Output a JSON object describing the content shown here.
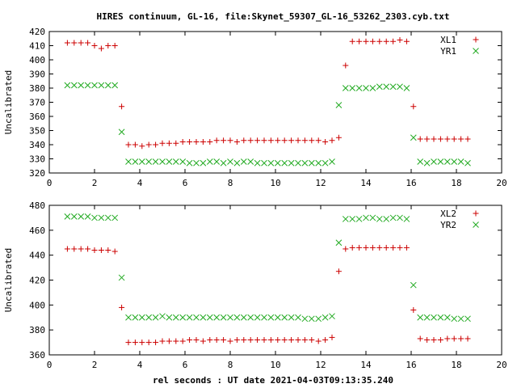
{
  "title": "HIRES continuum, GL-16, file:Skynet_59307_GL-16_53262_2303.cyb.txt",
  "xlabel": "rel seconds : UT date 2021-04-03T09:13:35.240",
  "colors": {
    "plus": "#cc0000",
    "cross": "#22aa22",
    "axis": "#000000"
  },
  "chart_data": [
    {
      "type": "scatter",
      "ylabel": "Uncalibrated",
      "xlim": [
        0,
        20
      ],
      "ylim": [
        320,
        420
      ],
      "xticks": [
        0,
        2,
        4,
        6,
        8,
        10,
        12,
        14,
        16,
        18,
        20
      ],
      "yticks": [
        320,
        330,
        340,
        350,
        360,
        370,
        380,
        390,
        400,
        410,
        420
      ],
      "legend_position": "top-right",
      "series": [
        {
          "name": "XL1",
          "marker": "plus",
          "x": [
            0.8,
            1.1,
            1.4,
            1.7,
            2.0,
            2.3,
            2.6,
            2.9,
            3.2,
            3.5,
            3.8,
            4.1,
            4.4,
            4.7,
            5.0,
            5.3,
            5.6,
            5.9,
            6.2,
            6.5,
            6.8,
            7.1,
            7.4,
            7.7,
            8.0,
            8.3,
            8.6,
            8.9,
            9.2,
            9.5,
            9.8,
            10.1,
            10.4,
            10.7,
            11.0,
            11.3,
            11.6,
            11.9,
            12.2,
            12.5,
            12.8,
            13.1,
            13.4,
            13.7,
            14.0,
            14.3,
            14.6,
            14.9,
            15.2,
            15.5,
            15.8,
            16.1,
            16.4,
            16.7,
            17.0,
            17.3,
            17.6,
            17.9,
            18.2,
            18.5
          ],
          "y": [
            412,
            412,
            412,
            412,
            410,
            408,
            410,
            410,
            367,
            340,
            340,
            339,
            340,
            340,
            341,
            341,
            341,
            342,
            342,
            342,
            342,
            342,
            343,
            343,
            343,
            342,
            343,
            343,
            343,
            343,
            343,
            343,
            343,
            343,
            343,
            343,
            343,
            343,
            342,
            343,
            345,
            396,
            413,
            413,
            413,
            413,
            413,
            413,
            413,
            414,
            413,
            367,
            344,
            344,
            344,
            344,
            344,
            344,
            344,
            344
          ]
        },
        {
          "name": "YR1",
          "marker": "cross",
          "x": [
            0.8,
            1.1,
            1.4,
            1.7,
            2.0,
            2.3,
            2.6,
            2.9,
            3.2,
            3.5,
            3.8,
            4.1,
            4.4,
            4.7,
            5.0,
            5.3,
            5.6,
            5.9,
            6.2,
            6.5,
            6.8,
            7.1,
            7.4,
            7.7,
            8.0,
            8.3,
            8.6,
            8.9,
            9.2,
            9.5,
            9.8,
            10.1,
            10.4,
            10.7,
            11.0,
            11.3,
            11.6,
            11.9,
            12.2,
            12.5,
            12.8,
            13.1,
            13.4,
            13.7,
            14.0,
            14.3,
            14.6,
            14.9,
            15.2,
            15.5,
            15.8,
            16.1,
            16.4,
            16.7,
            17.0,
            17.3,
            17.6,
            17.9,
            18.2,
            18.5
          ],
          "y": [
            382,
            382,
            382,
            382,
            382,
            382,
            382,
            382,
            349,
            328,
            328,
            328,
            328,
            328,
            328,
            328,
            328,
            328,
            327,
            327,
            327,
            328,
            328,
            327,
            328,
            327,
            328,
            328,
            327,
            327,
            327,
            327,
            327,
            327,
            327,
            327,
            327,
            327,
            327,
            328,
            368,
            380,
            380,
            380,
            380,
            380,
            381,
            381,
            381,
            381,
            380,
            345,
            328,
            327,
            328,
            328,
            328,
            328,
            328,
            327
          ]
        }
      ]
    },
    {
      "type": "scatter",
      "ylabel": "Uncalibrated",
      "xlim": [
        0,
        20
      ],
      "ylim": [
        360,
        480
      ],
      "xticks": [
        0,
        2,
        4,
        6,
        8,
        10,
        12,
        14,
        16,
        18,
        20
      ],
      "yticks": [
        360,
        380,
        400,
        420,
        440,
        460,
        480
      ],
      "legend_position": "top-right",
      "series": [
        {
          "name": "XL2",
          "marker": "plus",
          "x": [
            0.8,
            1.1,
            1.4,
            1.7,
            2.0,
            2.3,
            2.6,
            2.9,
            3.2,
            3.5,
            3.8,
            4.1,
            4.4,
            4.7,
            5.0,
            5.3,
            5.6,
            5.9,
            6.2,
            6.5,
            6.8,
            7.1,
            7.4,
            7.7,
            8.0,
            8.3,
            8.6,
            8.9,
            9.2,
            9.5,
            9.8,
            10.1,
            10.4,
            10.7,
            11.0,
            11.3,
            11.6,
            11.9,
            12.2,
            12.5,
            12.8,
            13.1,
            13.4,
            13.7,
            14.0,
            14.3,
            14.6,
            14.9,
            15.2,
            15.5,
            15.8,
            16.1,
            16.4,
            16.7,
            17.0,
            17.3,
            17.6,
            17.9,
            18.2,
            18.5
          ],
          "y": [
            445,
            445,
            445,
            445,
            444,
            444,
            444,
            443,
            398,
            370,
            370,
            370,
            370,
            370,
            371,
            371,
            371,
            371,
            372,
            372,
            371,
            372,
            372,
            372,
            371,
            372,
            372,
            372,
            372,
            372,
            372,
            372,
            372,
            372,
            372,
            372,
            372,
            371,
            372,
            374,
            427,
            445,
            446,
            446,
            446,
            446,
            446,
            446,
            446,
            446,
            446,
            396,
            373,
            372,
            372,
            372,
            373,
            373,
            373,
            373
          ]
        },
        {
          "name": "YR2",
          "marker": "cross",
          "x": [
            0.8,
            1.1,
            1.4,
            1.7,
            2.0,
            2.3,
            2.6,
            2.9,
            3.2,
            3.5,
            3.8,
            4.1,
            4.4,
            4.7,
            5.0,
            5.3,
            5.6,
            5.9,
            6.2,
            6.5,
            6.8,
            7.1,
            7.4,
            7.7,
            8.0,
            8.3,
            8.6,
            8.9,
            9.2,
            9.5,
            9.8,
            10.1,
            10.4,
            10.7,
            11.0,
            11.3,
            11.6,
            11.9,
            12.2,
            12.5,
            12.8,
            13.1,
            13.4,
            13.7,
            14.0,
            14.3,
            14.6,
            14.9,
            15.2,
            15.5,
            15.8,
            16.1,
            16.4,
            16.7,
            17.0,
            17.3,
            17.6,
            17.9,
            18.2,
            18.5
          ],
          "y": [
            471,
            471,
            471,
            471,
            470,
            470,
            470,
            470,
            422,
            390,
            390,
            390,
            390,
            390,
            391,
            390,
            390,
            390,
            390,
            390,
            390,
            390,
            390,
            390,
            390,
            390,
            390,
            390,
            390,
            390,
            390,
            390,
            390,
            390,
            390,
            389,
            389,
            389,
            390,
            391,
            450,
            469,
            469,
            469,
            470,
            470,
            469,
            469,
            470,
            470,
            469,
            416,
            390,
            390,
            390,
            390,
            390,
            389,
            389,
            389
          ]
        }
      ]
    }
  ]
}
